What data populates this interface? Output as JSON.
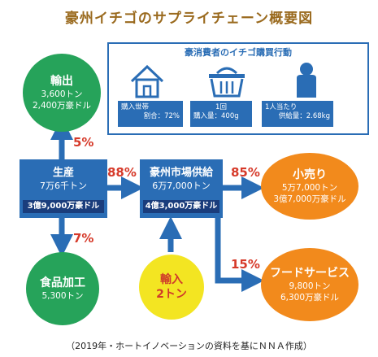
{
  "title": "豪州イチゴのサプライチェーン概要図",
  "consumer": {
    "title": "豪消費者のイチゴ購買行動",
    "stats": [
      {
        "icon": "house-icon",
        "lines": [
          "購入世帯",
          "割合：72%"
        ]
      },
      {
        "icon": "basket-icon",
        "lines": [
          "1回",
          "購入量：400g"
        ]
      },
      {
        "icon": "person-icon",
        "lines": [
          "1人当たり",
          "供給量：2.68kg"
        ]
      }
    ]
  },
  "export": {
    "name": "輸出",
    "line1": "3,600トン",
    "line2": "2,400万豪ドル",
    "pct": "5%"
  },
  "production": {
    "name": "生産",
    "amount": "7万6千トン",
    "value": "3億9,000万豪ドル",
    "pct_to_market": "88%"
  },
  "processing": {
    "name": "食品加工",
    "line1": "5,300トン",
    "pct": "7%"
  },
  "market": {
    "name": "豪州市場供給",
    "amount": "6万7,000トン",
    "value": "4億3,000万豪ドル"
  },
  "import": {
    "name": "輸入",
    "line1": "2トン"
  },
  "retail": {
    "name": "小売り",
    "line1": "5万7,000トン",
    "line2": "3億7,000万豪ドル",
    "pct": "85%"
  },
  "foodservice": {
    "name": "フードサービス",
    "line1": "9,800トン",
    "line2": "6,300万豪ドル",
    "pct": "15%"
  },
  "footnote": "（2019年・ホートイノベーションの資料を基にＮＮＡ作成）",
  "colors": {
    "blue": "#2a6db5",
    "navy": "#1a3d7c",
    "green": "#26a35a",
    "orange": "#f28a1c",
    "yellow": "#f3e522",
    "red": "#d63a2a"
  }
}
